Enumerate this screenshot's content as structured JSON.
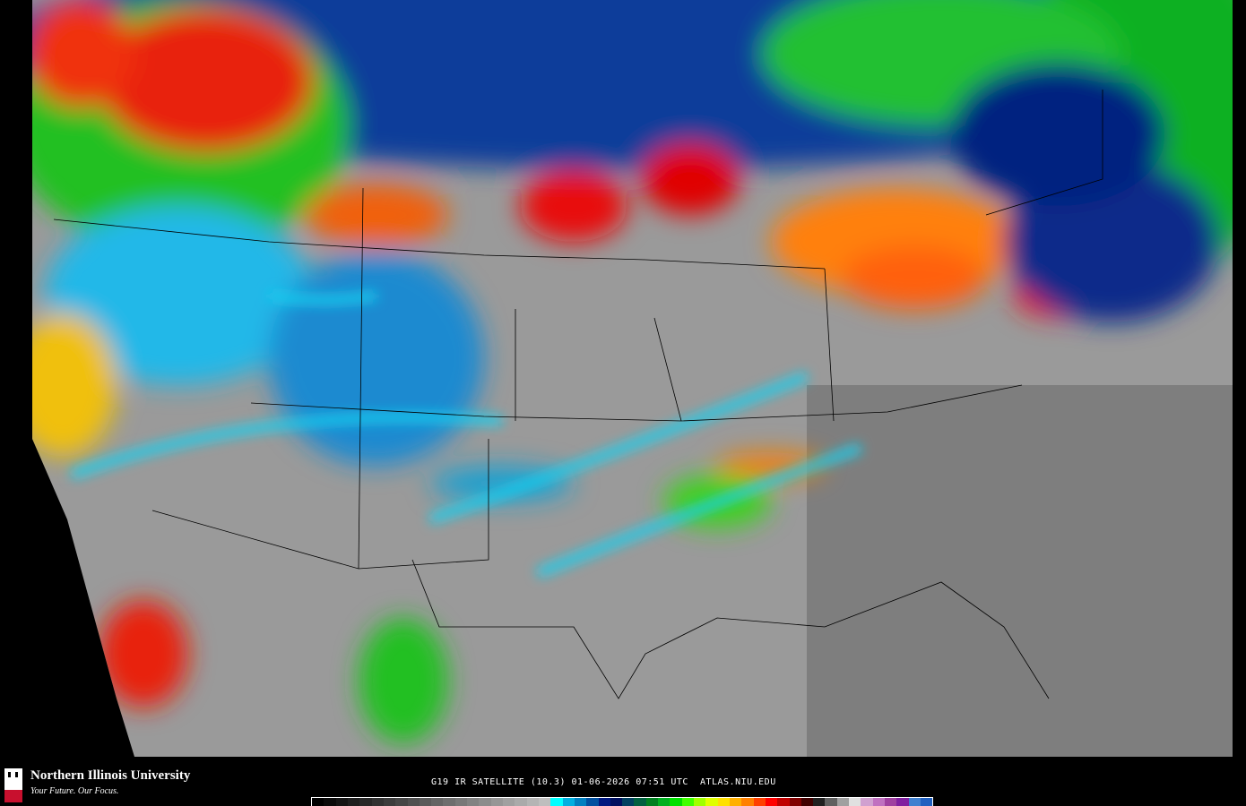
{
  "product": {
    "caption": "G19 IR SATELLITE (10.3) 01-06-2026 07:51 UTC  ATLAS.NIU.EDU"
  },
  "logo": {
    "name": "Northern Illinois University",
    "tagline": "Your Future. Our Focus.",
    "emblem_text": "NIU"
  },
  "colors": {
    "background": "#000000",
    "clear_sky": "#9a9a9a",
    "cold_cyan": "#18d0f0",
    "deep_blue": "#0a2a8a",
    "green": "#10c020",
    "yellow": "#f0f010",
    "red": "#e81010"
  },
  "colorbar": [
    "#000000",
    "#0a0a0a",
    "#141414",
    "#1e1e1e",
    "#282828",
    "#323232",
    "#3c3c3c",
    "#464646",
    "#505050",
    "#5a5a5a",
    "#646464",
    "#6e6e6e",
    "#787878",
    "#828282",
    "#8c8c8c",
    "#969696",
    "#a0a0a0",
    "#aaaaaa",
    "#b4b4b4",
    "#bebebe",
    "#00ffff",
    "#00b0e0",
    "#0080c0",
    "#0050a0",
    "#001880",
    "#001060",
    "#004060",
    "#006040",
    "#008020",
    "#00b020",
    "#00e000",
    "#40ff00",
    "#a0ff00",
    "#e0ff00",
    "#ffe000",
    "#ffb000",
    "#ff8000",
    "#ff4000",
    "#ff0000",
    "#c00000",
    "#800000",
    "#400000",
    "#202020",
    "#606060",
    "#a0a0a0",
    "#e0e0e0",
    "#d0a0d0",
    "#c070c0",
    "#a040a0",
    "#8020a0",
    "#4080d0",
    "#2060c0"
  ]
}
